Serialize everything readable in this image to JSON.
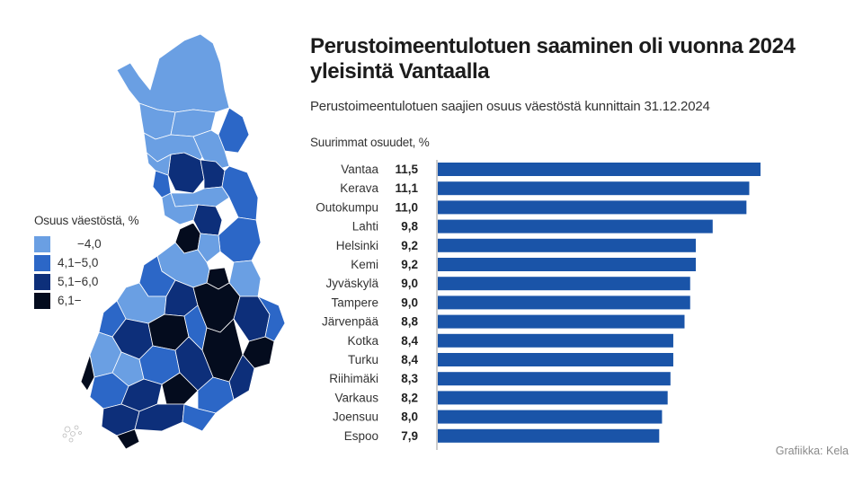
{
  "header": {
    "title_line1": "Perustoimeentulotuen saaminen oli vuonna 2024",
    "title_line2": "yleisintä Vantaalla",
    "subtitle": "Perustoimeentulotuen saajien osuus väestöstä kunnittain 31.12.2024"
  },
  "credit": "Grafiikka: Kela",
  "map_legend": {
    "title": "Osuus väestöstä, %",
    "items": [
      {
        "label": "−4,0",
        "color": "#6a9fe3"
      },
      {
        "label": "4,1−5,0",
        "color": "#2c67c7"
      },
      {
        "label": "5,1−6,0",
        "color": "#0d2f7a"
      },
      {
        "label": "6,1−",
        "color": "#040c1e"
      }
    ]
  },
  "chart_data": {
    "type": "bar",
    "orientation": "horizontal",
    "title": "Suurimmat osuudet, %",
    "categories": [
      "Vantaa",
      "Kerava",
      "Outokumpu",
      "Lahti",
      "Helsinki",
      "Kemi",
      "Jyväskylä",
      "Tampere",
      "Järvenpää",
      "Kotka",
      "Turku",
      "Riihimäki",
      "Varkaus",
      "Joensuu",
      "Espoo"
    ],
    "values": [
      11.5,
      11.1,
      11.0,
      9.8,
      9.2,
      9.2,
      9.0,
      9.0,
      8.8,
      8.4,
      8.4,
      8.3,
      8.2,
      8.0,
      7.9
    ],
    "value_labels": [
      "11,5",
      "11,1",
      "11,0",
      "9,8",
      "9,2",
      "9,2",
      "9,0",
      "9,0",
      "8,8",
      "8,4",
      "8,4",
      "8,3",
      "8,2",
      "8,0",
      "7,9"
    ],
    "xlim": [
      0,
      11.5
    ],
    "bar_color": "#1a54a8",
    "axis_color": "#999999"
  }
}
